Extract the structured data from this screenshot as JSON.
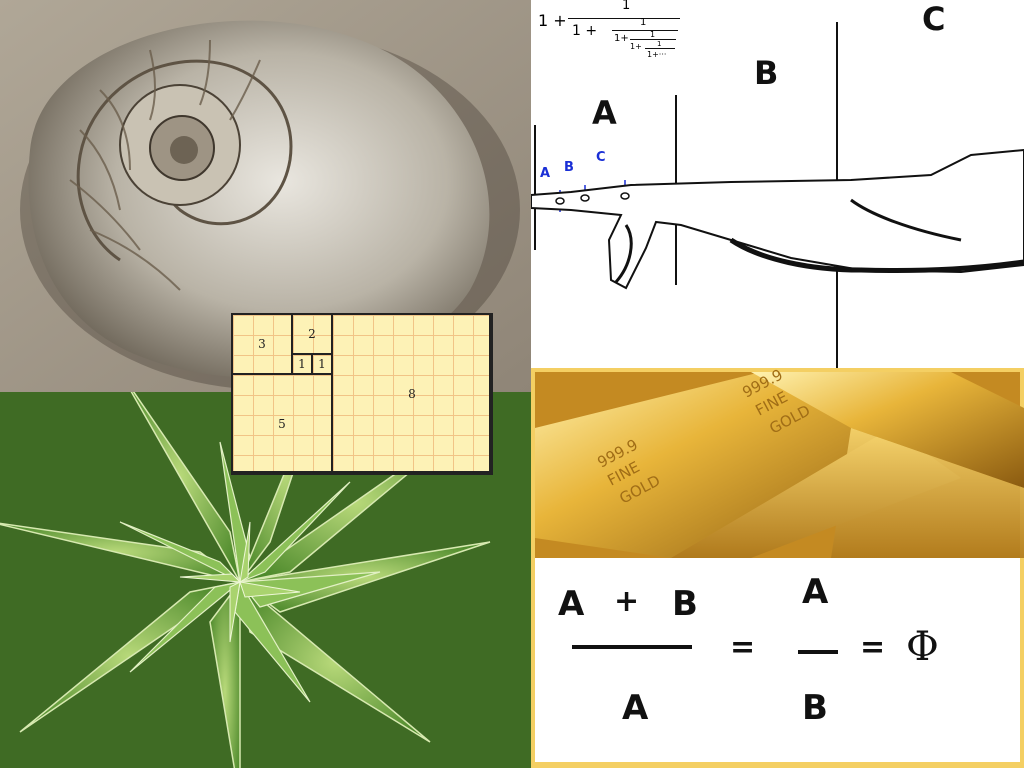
{
  "fibonacci": {
    "squares": [
      "3",
      "2",
      "1",
      "1",
      "5",
      "8"
    ]
  },
  "continued_fraction": {
    "lead": "1 +",
    "numerator": "1",
    "level2": "1 +",
    "level3": "1+",
    "level4": "1+",
    "tail": "1+···"
  },
  "finger_labels": {
    "large": [
      "A",
      "B",
      "C"
    ],
    "small": [
      "A",
      "B",
      "C"
    ]
  },
  "gold_bars": {
    "stamp_line1": "999.9",
    "stamp_line2": "FINE",
    "stamp_line3": "GOLD"
  },
  "equation": {
    "lhs_numerator_a": "A",
    "lhs_plus": "+",
    "lhs_numerator_b": "B",
    "lhs_denominator": "A",
    "equals1": "=",
    "rhs_numerator": "A",
    "rhs_denominator": "B",
    "equals2": "=",
    "phi": "Φ"
  },
  "colors": {
    "gold": "#e8b53a",
    "grid_fill": "#fdf2b6",
    "grid_line": "#f1c486",
    "blue_marks": "#1a2fd6"
  }
}
